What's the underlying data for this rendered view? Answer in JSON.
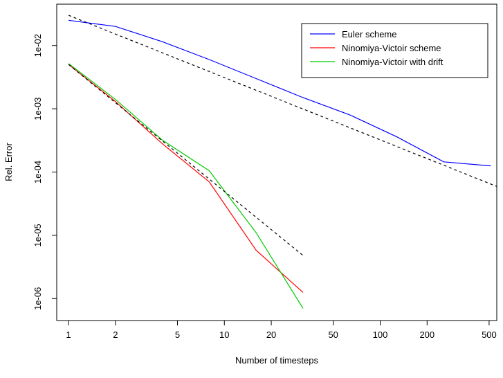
{
  "chart_data": {
    "type": "line",
    "title": "",
    "xlabel": "Number of timesteps",
    "ylabel": "Rel. Error",
    "x_scale": "log",
    "y_scale": "log",
    "xlim": [
      0.84,
      560
    ],
    "ylim": [
      4.5e-07,
      0.045
    ],
    "x_ticks": [
      1,
      2,
      5,
      10,
      20,
      50,
      100,
      200,
      500
    ],
    "x_tick_labels": [
      "1",
      "2",
      "5",
      "10",
      "20",
      "50",
      "100",
      "200",
      "500"
    ],
    "y_ticks": [
      1e-06,
      1e-05,
      0.0001,
      0.001,
      0.01
    ],
    "y_tick_labels": [
      "1e-06",
      "1e-05",
      "1e-04",
      "1e-03",
      "1e-02"
    ],
    "grid": false,
    "legend_position": "top-right",
    "series": [
      {
        "name": "Euler scheme",
        "color": "#0000ff",
        "style": "solid",
        "x": [
          1,
          2,
          4,
          8,
          16,
          32,
          64,
          128,
          256,
          512
        ],
        "y": [
          0.025,
          0.02,
          0.0115,
          0.006,
          0.003,
          0.0015,
          0.0008,
          0.00036,
          0.000145,
          0.000125
        ]
      },
      {
        "name": "Ninomiya-Victoir scheme",
        "color": "#ff0000",
        "style": "solid",
        "x": [
          1,
          2,
          4,
          8,
          16,
          32
        ],
        "y": [
          0.005,
          0.0013,
          0.00028,
          7e-05,
          5.8e-06,
          1.25e-06
        ]
      },
      {
        "name": "Ninomiya-Victoir with drift",
        "color": "#00cc00",
        "style": "solid",
        "x": [
          1,
          2,
          4,
          8,
          16,
          32
        ],
        "y": [
          0.0052,
          0.0014,
          0.00032,
          0.000105,
          1.1e-05,
          7e-07
        ]
      },
      {
        "name": "",
        "color": "#000000",
        "style": "dashed",
        "x": [
          1,
          560
        ],
        "y": [
          0.03,
          5.92e-05
        ]
      },
      {
        "name": "",
        "color": "#000000",
        "style": "dashed",
        "x": [
          1,
          32
        ],
        "y": [
          0.005,
          4.8e-06
        ]
      }
    ]
  }
}
